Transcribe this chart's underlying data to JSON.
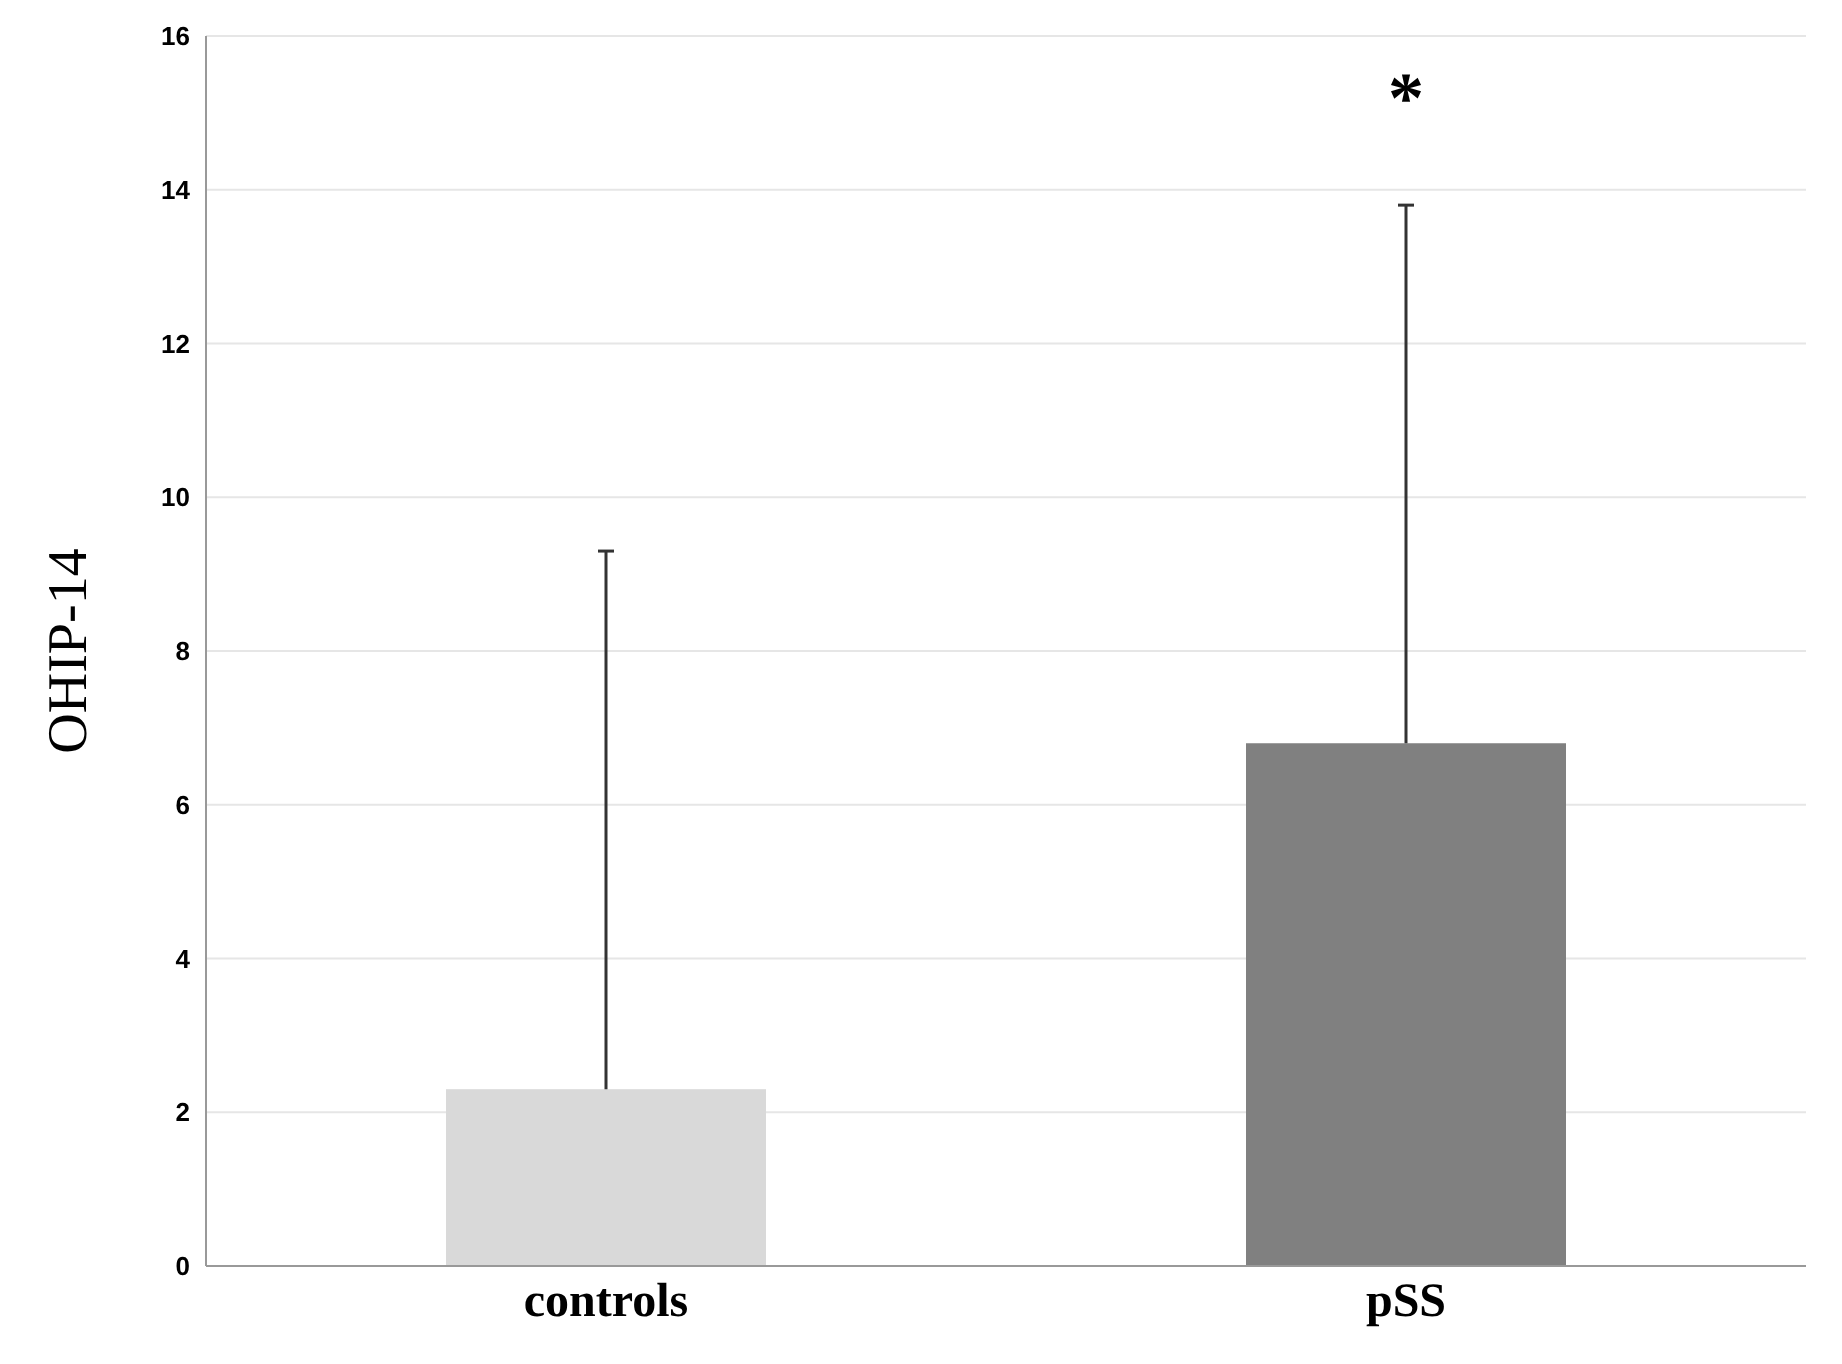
{
  "chart_data": {
    "type": "bar",
    "ylabel": "OHIP-14",
    "categories": [
      "controls",
      "pSS"
    ],
    "values": [
      2.3,
      6.8
    ],
    "colors": [
      "#d9d9d9",
      "#808080"
    ],
    "errors": [
      [
        2.3,
        9.3
      ],
      [
        6.8,
        13.8
      ]
    ],
    "ylim": [
      0,
      16
    ],
    "yticks": [
      0,
      2,
      4,
      6,
      8,
      10,
      12,
      14,
      16
    ],
    "grid": "y",
    "annotations": [
      "*"
    ]
  }
}
